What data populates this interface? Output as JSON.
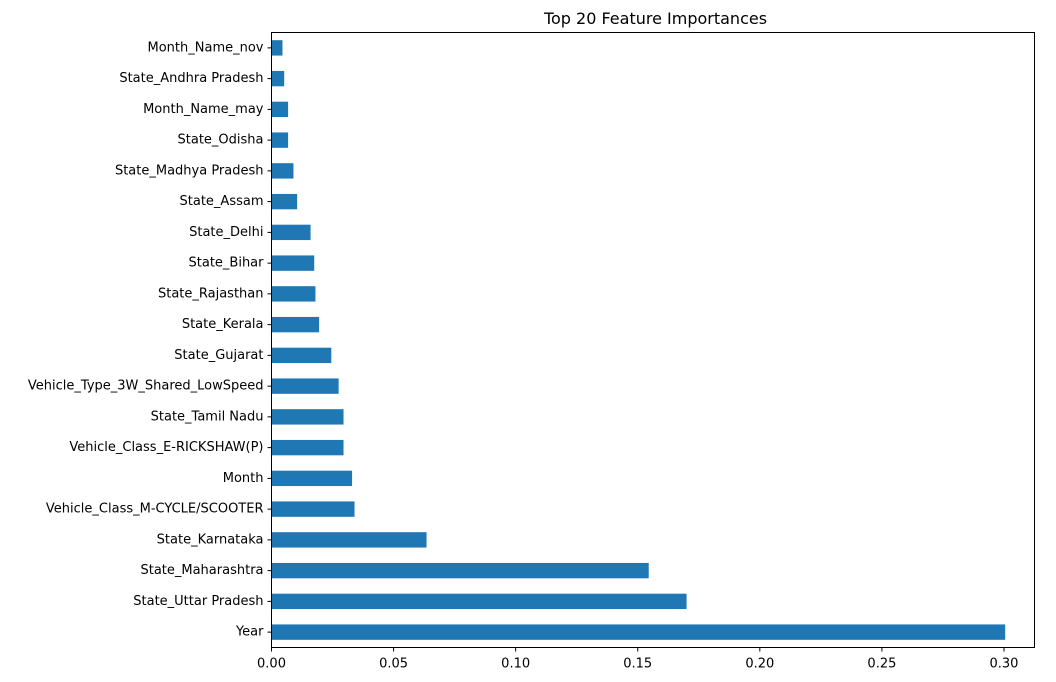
{
  "chart_data": {
    "type": "bar",
    "orientation": "horizontal",
    "title": "Top 20 Feature Importances",
    "xlabel": "",
    "ylabel": "",
    "xlim": [
      0,
      0.3125
    ],
    "xticks": [
      0.0,
      0.05,
      0.1,
      0.15,
      0.2,
      0.25,
      0.3
    ],
    "xtick_labels": [
      "0.00",
      "0.05",
      "0.10",
      "0.15",
      "0.20",
      "0.25",
      "0.30"
    ],
    "grid": false,
    "legend": "none",
    "bar_color": "#1f77b4",
    "categories": [
      "Month_Name_nov",
      "State_Andhra Pradesh",
      "Month_Name_may",
      "State_Odisha",
      "State_Madhya Pradesh",
      "State_Assam",
      "State_Delhi",
      "State_Bihar",
      "State_Rajasthan",
      "State_Kerala",
      "State_Gujarat",
      "Vehicle_Type_3W_Shared_LowSpeed",
      "State_Tamil Nadu",
      "Vehicle_Class_E-RICKSHAW(P)",
      "Month",
      "Vehicle_Class_M-CYCLE/SCOOTER",
      "State_Karnataka",
      "State_Maharashtra",
      "State_Uttar Pradesh",
      "Year"
    ],
    "values": [
      0.0045,
      0.0052,
      0.0068,
      0.0068,
      0.009,
      0.0105,
      0.016,
      0.0175,
      0.018,
      0.0195,
      0.0245,
      0.0275,
      0.0295,
      0.0295,
      0.033,
      0.034,
      0.0635,
      0.1545,
      0.17,
      0.3005
    ]
  }
}
